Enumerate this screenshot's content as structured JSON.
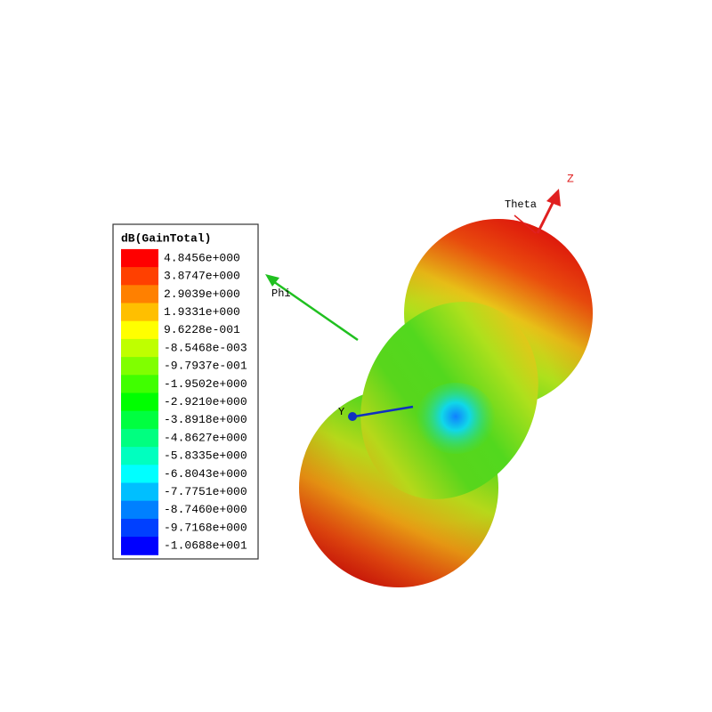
{
  "chart_data": {
    "type": "radiation-pattern-3d",
    "colorbar": {
      "title": "dB(GainTotal)",
      "ticks": [
        {
          "value": 4.8456,
          "label": "4.8456e+000"
        },
        {
          "value": 3.8747,
          "label": "3.8747e+000"
        },
        {
          "value": 2.9039,
          "label": "2.9039e+000"
        },
        {
          "value": 1.9331,
          "label": "1.9331e+000"
        },
        {
          "value": 0.96228,
          "label": "9.6228e-001"
        },
        {
          "value": -0.0085468,
          "label": "-8.5468e-003"
        },
        {
          "value": -0.97937,
          "label": "-9.7937e-001"
        },
        {
          "value": -1.9502,
          "label": "-1.9502e+000"
        },
        {
          "value": -2.921,
          "label": "-2.9210e+000"
        },
        {
          "value": -3.8918,
          "label": "-3.8918e+000"
        },
        {
          "value": -4.8627,
          "label": "-4.8627e+000"
        },
        {
          "value": -5.8335,
          "label": "-5.8335e+000"
        },
        {
          "value": -6.8043,
          "label": "-6.8043e+000"
        },
        {
          "value": -7.7751,
          "label": "-7.7751e+000"
        },
        {
          "value": -8.746,
          "label": "-8.7460e+000"
        },
        {
          "value": -9.7168,
          "label": "-9.7168e+000"
        },
        {
          "value": -10.688,
          "label": "-1.0688e+001"
        }
      ],
      "colors": [
        "#ff0000",
        "#ff4000",
        "#ff8000",
        "#ffbf00",
        "#ffff00",
        "#bfff00",
        "#80ff00",
        "#40ff00",
        "#00ff00",
        "#00ff40",
        "#00ff80",
        "#00ffbf",
        "#00ffff",
        "#00bfff",
        "#0080ff",
        "#0040ff",
        "#0000ff"
      ]
    },
    "axis_labels": {
      "z": "Z",
      "theta": "Theta",
      "phi": "Phi",
      "y": "Y"
    }
  }
}
